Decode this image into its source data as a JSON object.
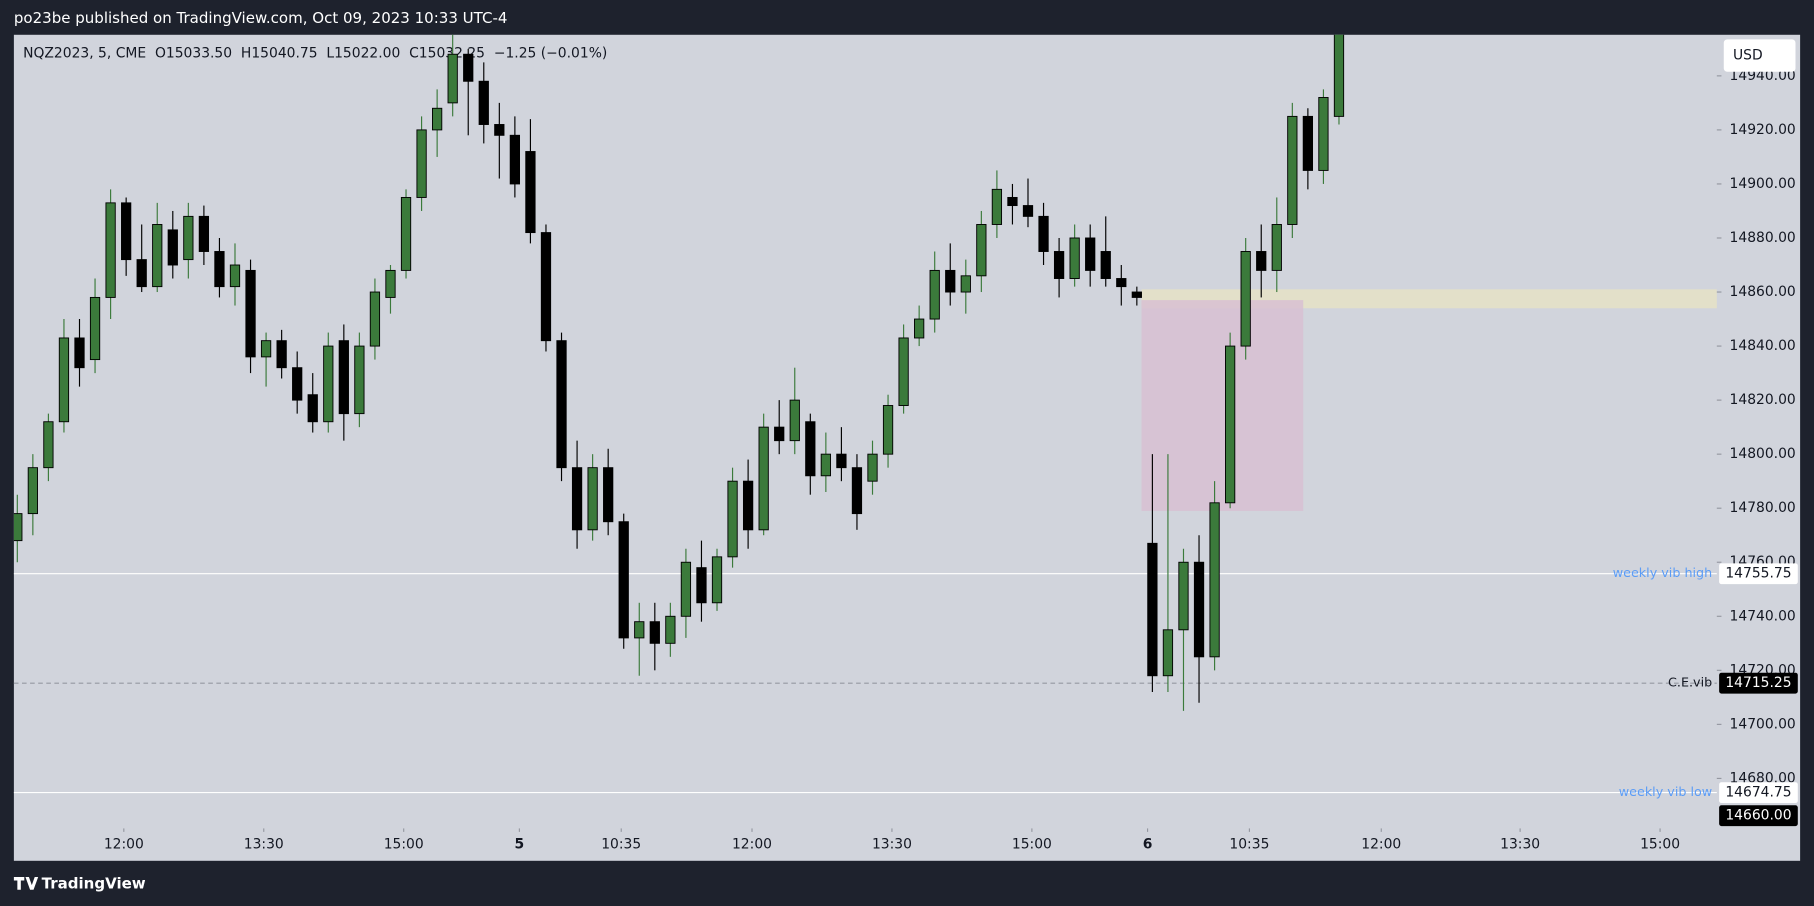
{
  "header": {
    "text": "po23be published on TradingView.com, Oct 09, 2023 10:33 UTC-4"
  },
  "chart_data": {
    "type": "candlestick",
    "legend_text": "NQZ2023, 5, CME  O15033.50  H15040.75  L15022.00  C15032.25  −1.25 (−0.01%)",
    "currency": "USD",
    "up_color": "#3b7a3b",
    "down_color": "#000000",
    "ohlc": [
      [
        14768,
        14785,
        14760,
        14778
      ],
      [
        14778,
        14800,
        14770,
        14795
      ],
      [
        14795,
        14815,
        14790,
        14812
      ],
      [
        14812,
        14850,
        14808,
        14843
      ],
      [
        14843,
        14850,
        14825,
        14832
      ],
      [
        14835,
        14865,
        14830,
        14858
      ],
      [
        14858,
        14898,
        14850,
        14893
      ],
      [
        14893,
        14895,
        14866,
        14872
      ],
      [
        14872,
        14885,
        14860,
        14862
      ],
      [
        14862,
        14893,
        14860,
        14885
      ],
      [
        14883,
        14890,
        14865,
        14870
      ],
      [
        14872,
        14893,
        14865,
        14888
      ],
      [
        14888,
        14892,
        14870,
        14875
      ],
      [
        14875,
        14880,
        14858,
        14862
      ],
      [
        14862,
        14878,
        14855,
        14870
      ],
      [
        14868,
        14872,
        14830,
        14836
      ],
      [
        14836,
        14845,
        14825,
        14842
      ],
      [
        14842,
        14846,
        14828,
        14832
      ],
      [
        14832,
        14838,
        14815,
        14820
      ],
      [
        14822,
        14830,
        14808,
        14812
      ],
      [
        14812,
        14845,
        14808,
        14840
      ],
      [
        14842,
        14848,
        14805,
        14815
      ],
      [
        14815,
        14845,
        14810,
        14840
      ],
      [
        14840,
        14865,
        14835,
        14860
      ],
      [
        14858,
        14870,
        14852,
        14868
      ],
      [
        14868,
        14898,
        14865,
        14895
      ],
      [
        14895,
        14925,
        14890,
        14920
      ],
      [
        14920,
        14935,
        14910,
        14928
      ],
      [
        14930,
        14958,
        14925,
        14948
      ],
      [
        14948,
        14950,
        14918,
        14938
      ],
      [
        14938,
        14945,
        14915,
        14922
      ],
      [
        14922,
        14930,
        14902,
        14918
      ],
      [
        14918,
        14925,
        14895,
        14900
      ],
      [
        14912,
        14924,
        14878,
        14882
      ],
      [
        14882,
        14885,
        14838,
        14842
      ],
      [
        14842,
        14845,
        14790,
        14795
      ],
      [
        14795,
        14805,
        14765,
        14772
      ],
      [
        14772,
        14800,
        14768,
        14795
      ],
      [
        14795,
        14802,
        14770,
        14775
      ],
      [
        14775,
        14778,
        14728,
        14732
      ],
      [
        14732,
        14745,
        14718,
        14738
      ],
      [
        14738,
        14745,
        14720,
        14730
      ],
      [
        14730,
        14745,
        14725,
        14740
      ],
      [
        14740,
        14765,
        14732,
        14760
      ],
      [
        14758,
        14768,
        14738,
        14745
      ],
      [
        14745,
        14765,
        14742,
        14762
      ],
      [
        14762,
        14795,
        14758,
        14790
      ],
      [
        14790,
        14798,
        14765,
        14772
      ],
      [
        14772,
        14815,
        14770,
        14810
      ],
      [
        14810,
        14820,
        14800,
        14805
      ],
      [
        14805,
        14832,
        14800,
        14820
      ],
      [
        14812,
        14815,
        14785,
        14792
      ],
      [
        14792,
        14808,
        14786,
        14800
      ],
      [
        14800,
        14810,
        14790,
        14795
      ],
      [
        14795,
        14800,
        14772,
        14778
      ],
      [
        14790,
        14805,
        14785,
        14800
      ],
      [
        14800,
        14822,
        14795,
        14818
      ],
      [
        14818,
        14848,
        14815,
        14843
      ],
      [
        14843,
        14855,
        14840,
        14850
      ],
      [
        14850,
        14875,
        14845,
        14868
      ],
      [
        14868,
        14878,
        14855,
        14860
      ],
      [
        14860,
        14872,
        14852,
        14866
      ],
      [
        14866,
        14890,
        14860,
        14885
      ],
      [
        14885,
        14905,
        14880,
        14898
      ],
      [
        14895,
        14900,
        14885,
        14892
      ],
      [
        14892,
        14902,
        14884,
        14888
      ],
      [
        14888,
        14893,
        14870,
        14875
      ],
      [
        14875,
        14880,
        14858,
        14865
      ],
      [
        14865,
        14885,
        14862,
        14880
      ],
      [
        14880,
        14885,
        14862,
        14868
      ],
      [
        14875,
        14888,
        14862,
        14865
      ],
      [
        14865,
        14870,
        14855,
        14862
      ],
      [
        14860,
        14862,
        14855,
        14858
      ],
      [
        14767,
        14800,
        14712,
        14718
      ],
      [
        14718,
        14800,
        14712,
        14735
      ],
      [
        14735,
        14765,
        14705,
        14760
      ],
      [
        14760,
        14770,
        14708,
        14725
      ],
      [
        14725,
        14790,
        14720,
        14782
      ],
      [
        14782,
        14845,
        14780,
        14840
      ],
      [
        14840,
        14880,
        14835,
        14875
      ],
      [
        14875,
        14885,
        14858,
        14868
      ],
      [
        14868,
        14895,
        14860,
        14885
      ],
      [
        14885,
        14930,
        14880,
        14925
      ],
      [
        14925,
        14928,
        14898,
        14905
      ],
      [
        14905,
        14935,
        14900,
        14932
      ],
      [
        14925,
        14965,
        14922,
        14960
      ]
    ],
    "xlim": [
      -0.22,
      109.3
    ],
    "xticks": [
      {
        "value": 6.85,
        "label": "12:00"
      },
      {
        "value": 15.85,
        "label": "13:30"
      },
      {
        "value": 24.85,
        "label": "15:00"
      },
      {
        "value": 32.29,
        "label": "5",
        "bold": true
      },
      {
        "value": 38.84,
        "label": "10:35"
      },
      {
        "value": 47.25,
        "label": "12:00"
      },
      {
        "value": 56.25,
        "label": "13:30"
      },
      {
        "value": 65.25,
        "label": "15:00"
      },
      {
        "value": 72.69,
        "label": "6",
        "bold": true
      },
      {
        "value": 79.24,
        "label": "10:35"
      },
      {
        "value": 87.72,
        "label": "12:00"
      },
      {
        "value": 96.65,
        "label": "13:30"
      },
      {
        "value": 105.65,
        "label": "15:00"
      }
    ],
    "ylim": [
      14661.5,
      14955.2
    ],
    "yticks": [
      {
        "value": 14680,
        "label": "14680.00"
      },
      {
        "value": 14700,
        "label": "14700.00"
      },
      {
        "value": 14720,
        "label": "14720.00"
      },
      {
        "value": 14740,
        "label": "14740.00"
      },
      {
        "value": 14760,
        "label": "14760.00"
      },
      {
        "value": 14780,
        "label": "14780.00"
      },
      {
        "value": 14800,
        "label": "14800.00"
      },
      {
        "value": 14820,
        "label": "14820.00"
      },
      {
        "value": 14840,
        "label": "14840.00"
      },
      {
        "value": 14860,
        "label": "14860.00"
      },
      {
        "value": 14880,
        "label": "14880.00"
      },
      {
        "value": 14900,
        "label": "14900.00"
      },
      {
        "value": 14920,
        "label": "14920.00"
      },
      {
        "value": 14940,
        "label": "14940.00"
      }
    ],
    "zones": [
      {
        "x": [
          72.3,
          109.3
        ],
        "y": [
          14854,
          14861
        ],
        "color": "#e6e2c6"
      },
      {
        "x": [
          72.3,
          82.7
        ],
        "y": [
          14779,
          14857
        ],
        "color": "#d8c0d2"
      }
    ],
    "levels": [
      {
        "label": "weekly vib high",
        "value": 14755.75,
        "line_color": "#ffffff",
        "dashed": false,
        "label_color": "#5b9cf6",
        "box_color": "#ffffff",
        "box_text_color": "#131722"
      },
      {
        "label": "C.E.vib",
        "value": 14715.25,
        "line_color": "#9598a1",
        "dashed": true,
        "label_color": "#131722",
        "box_color": "#000000",
        "box_text_color": "#ffffff"
      },
      {
        "label": "weekly vib low",
        "value": 14674.75,
        "line_color": "#ffffff",
        "dashed": false,
        "label_color": "#5b9cf6",
        "box_color": "#ffffff",
        "box_text_color": "#131722"
      }
    ],
    "price_label": {
      "value": 14660,
      "label": "14660.00"
    }
  },
  "footer": {
    "brand": "TradingView"
  }
}
